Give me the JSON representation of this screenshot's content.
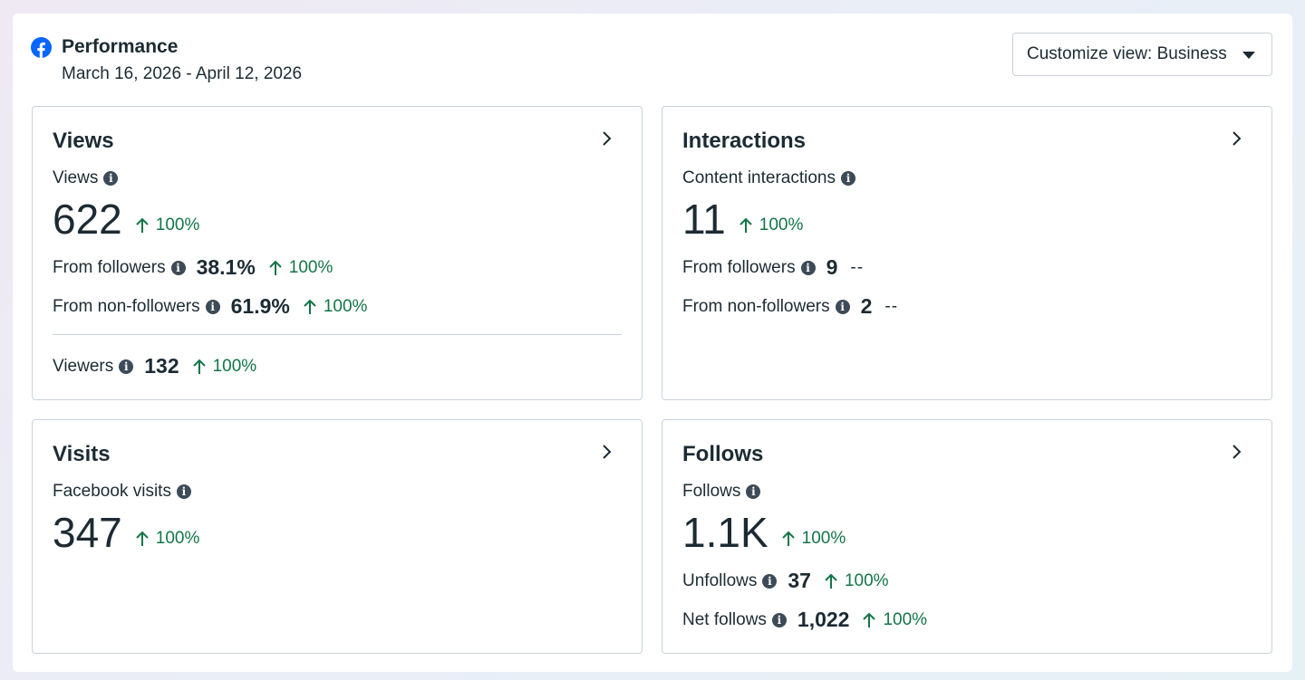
{
  "header": {
    "title": "Performance",
    "date_range": "March 16, 2026 - April 12, 2026",
    "customize_label": "Customize view: Business"
  },
  "colors": {
    "accent": "#0866ff",
    "positive": "#137548",
    "text": "#1c2b33",
    "border": "#cbd2d9"
  },
  "cards": {
    "views": {
      "title": "Views",
      "main_label": "Views",
      "main_value": "622",
      "main_trend": "100%",
      "followers_label": "From followers",
      "followers_value": "38.1%",
      "followers_trend": "100%",
      "nonfollowers_label": "From non-followers",
      "nonfollowers_value": "61.9%",
      "nonfollowers_trend": "100%",
      "viewers_label": "Viewers",
      "viewers_value": "132",
      "viewers_trend": "100%"
    },
    "interactions": {
      "title": "Interactions",
      "main_label": "Content interactions",
      "main_value": "11",
      "main_trend": "100%",
      "followers_label": "From followers",
      "followers_value": "9",
      "followers_trend": "--",
      "nonfollowers_label": "From non-followers",
      "nonfollowers_value": "2",
      "nonfollowers_trend": "--"
    },
    "visits": {
      "title": "Visits",
      "main_label": "Facebook visits",
      "main_value": "347",
      "main_trend": "100%"
    },
    "follows": {
      "title": "Follows",
      "main_label": "Follows",
      "main_value": "1.1K",
      "main_trend": "100%",
      "unfollows_label": "Unfollows",
      "unfollows_value": "37",
      "unfollows_trend": "100%",
      "net_label": "Net follows",
      "net_value": "1,022",
      "net_trend": "100%"
    }
  }
}
